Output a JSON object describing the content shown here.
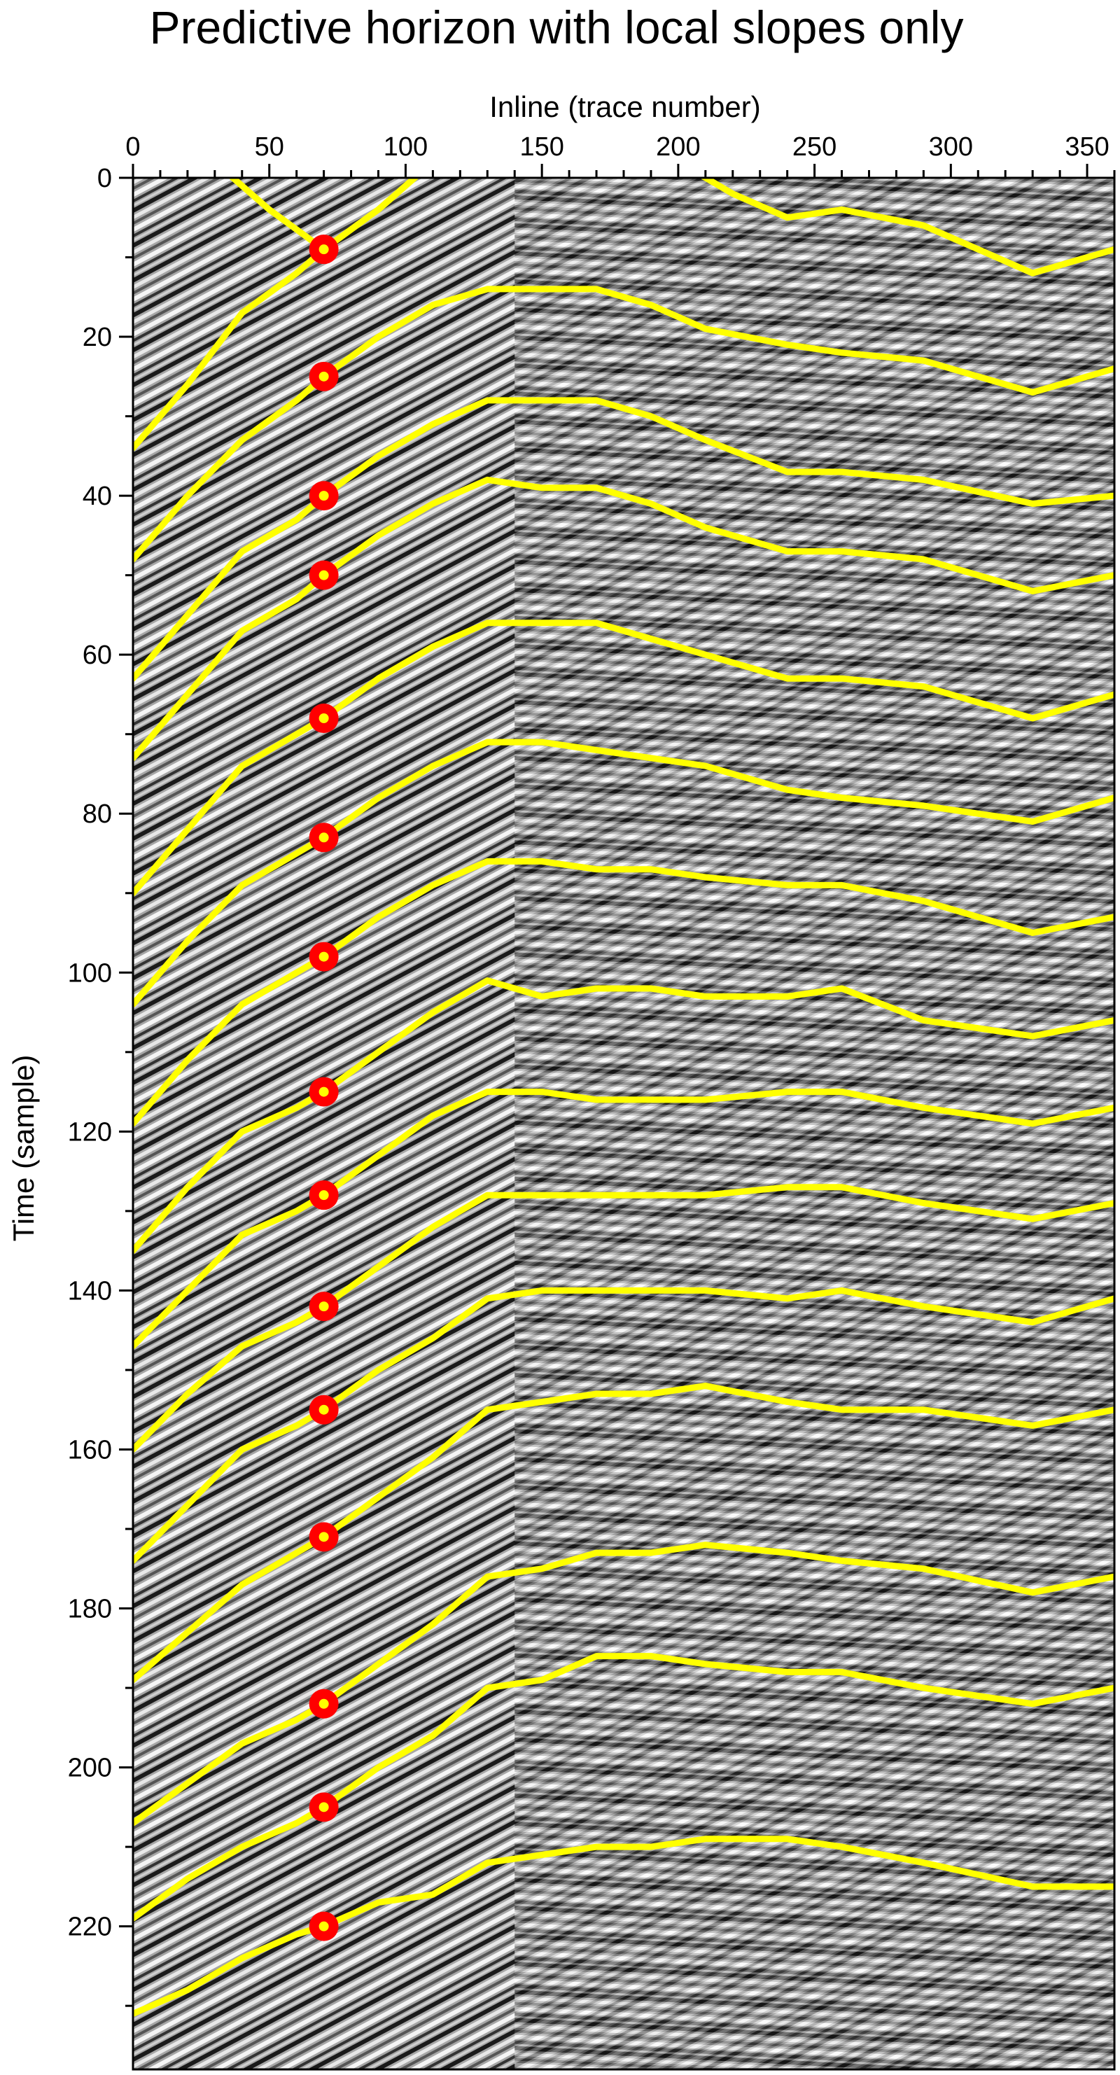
{
  "chart_data": {
    "type": "line",
    "title": "Predictive horizon with local slopes only",
    "xlabel": "Inline (trace number)",
    "ylabel": "Time (sample)",
    "xlim": [
      0,
      360
    ],
    "ylim": [
      0,
      238
    ],
    "y_inverted": true,
    "x_axis_position": "top",
    "x_ticks": [
      0,
      50,
      100,
      150,
      200,
      250,
      300,
      350
    ],
    "y_ticks": [
      0,
      20,
      40,
      60,
      80,
      100,
      120,
      140,
      160,
      180,
      200,
      220
    ],
    "grid": false,
    "legend": "none",
    "background": "grayscale seismic section",
    "colors": {
      "horizon": "#ffff00",
      "pick_marker": "#ff0000",
      "pick_center": "#ffff00"
    },
    "pick_trace": 70,
    "picks": [
      9,
      25,
      40,
      50,
      68,
      83,
      98,
      115,
      128,
      142,
      155,
      171,
      192,
      205,
      220
    ],
    "horizons": [
      {
        "x": [
          0,
          30,
          50,
          70,
          90,
          110,
          120,
          135,
          150
        ],
        "y": [
          -10,
          -2,
          4,
          9,
          4,
          -2,
          -5,
          -10,
          -14
        ]
      },
      {
        "x": [
          0,
          20,
          40,
          60,
          70,
          90,
          110,
          130,
          150,
          170,
          190,
          205,
          220,
          240,
          260,
          290,
          330,
          360
        ],
        "y": [
          34,
          26,
          17,
          12,
          9,
          4,
          -2,
          -8,
          -10,
          -8,
          -4,
          -1,
          2,
          5,
          4,
          6,
          12,
          9
        ]
      },
      {
        "x": [
          0,
          20,
          40,
          60,
          70,
          90,
          110,
          130,
          150,
          170,
          190,
          210,
          240,
          260,
          290,
          330,
          360
        ],
        "y": [
          48,
          40,
          33,
          28,
          25,
          20,
          16,
          14,
          14,
          14,
          16,
          19,
          21,
          22,
          23,
          27,
          24
        ]
      },
      {
        "x": [
          0,
          20,
          40,
          60,
          70,
          90,
          110,
          130,
          150,
          170,
          190,
          210,
          240,
          260,
          290,
          330,
          360
        ],
        "y": [
          63,
          55,
          47,
          43,
          40,
          35,
          31,
          28,
          28,
          28,
          30,
          33,
          37,
          37,
          38,
          41,
          40
        ]
      },
      {
        "x": [
          0,
          20,
          40,
          60,
          70,
          90,
          110,
          130,
          150,
          170,
          190,
          210,
          240,
          260,
          290,
          330,
          360
        ],
        "y": [
          73,
          65,
          57,
          53,
          50,
          45,
          41,
          38,
          39,
          39,
          41,
          44,
          47,
          47,
          48,
          52,
          50
        ]
      },
      {
        "x": [
          0,
          20,
          40,
          60,
          70,
          90,
          110,
          130,
          150,
          170,
          190,
          210,
          240,
          260,
          290,
          330,
          360
        ],
        "y": [
          90,
          82,
          74,
          70,
          68,
          63,
          59,
          56,
          56,
          56,
          58,
          60,
          63,
          63,
          64,
          68,
          65
        ]
      },
      {
        "x": [
          0,
          20,
          40,
          60,
          70,
          90,
          110,
          130,
          150,
          170,
          190,
          210,
          240,
          260,
          290,
          330,
          360
        ],
        "y": [
          104,
          96,
          89,
          85,
          83,
          78,
          74,
          71,
          71,
          72,
          73,
          74,
          77,
          78,
          79,
          81,
          78
        ]
      },
      {
        "x": [
          0,
          20,
          40,
          60,
          70,
          90,
          110,
          130,
          150,
          170,
          190,
          210,
          240,
          260,
          290,
          330,
          360
        ],
        "y": [
          119,
          111,
          104,
          100,
          98,
          93,
          89,
          86,
          86,
          87,
          87,
          88,
          89,
          89,
          91,
          95,
          93
        ]
      },
      {
        "x": [
          0,
          20,
          40,
          60,
          70,
          90,
          110,
          130,
          150,
          170,
          190,
          210,
          240,
          260,
          290,
          330,
          360
        ],
        "y": [
          135,
          127,
          120,
          117,
          115,
          110,
          105,
          101,
          103,
          102,
          102,
          103,
          103,
          102,
          106,
          108,
          106
        ]
      },
      {
        "x": [
          0,
          20,
          40,
          60,
          70,
          90,
          110,
          130,
          150,
          170,
          190,
          210,
          240,
          260,
          290,
          330,
          360
        ],
        "y": [
          147,
          140,
          133,
          130,
          128,
          123,
          118,
          115,
          115,
          116,
          116,
          116,
          115,
          115,
          117,
          119,
          117
        ]
      },
      {
        "x": [
          0,
          20,
          40,
          60,
          70,
          90,
          110,
          130,
          150,
          170,
          190,
          210,
          240,
          260,
          290,
          330,
          360
        ],
        "y": [
          160,
          153,
          147,
          144,
          142,
          137,
          132,
          128,
          128,
          128,
          128,
          128,
          127,
          127,
          129,
          131,
          129
        ]
      },
      {
        "x": [
          0,
          20,
          40,
          60,
          70,
          90,
          110,
          130,
          150,
          170,
          190,
          210,
          240,
          260,
          290,
          330,
          360
        ],
        "y": [
          174,
          167,
          160,
          157,
          155,
          150,
          146,
          141,
          140,
          140,
          140,
          140,
          141,
          140,
          142,
          144,
          141
        ]
      },
      {
        "x": [
          0,
          20,
          40,
          60,
          70,
          90,
          110,
          130,
          150,
          170,
          190,
          210,
          240,
          260,
          290,
          330,
          360
        ],
        "y": [
          189,
          183,
          177,
          173,
          171,
          166,
          161,
          155,
          154,
          153,
          153,
          152,
          154,
          155,
          155,
          157,
          155
        ]
      },
      {
        "x": [
          0,
          20,
          40,
          60,
          70,
          90,
          110,
          130,
          150,
          170,
          190,
          210,
          240,
          260,
          290,
          330,
          360
        ],
        "y": [
          207,
          202,
          197,
          194,
          192,
          187,
          182,
          176,
          175,
          173,
          173,
          172,
          173,
          174,
          175,
          178,
          176
        ]
      },
      {
        "x": [
          0,
          20,
          40,
          60,
          70,
          90,
          110,
          130,
          150,
          170,
          190,
          210,
          240,
          260,
          290,
          330,
          360
        ],
        "y": [
          219,
          214,
          210,
          207,
          205,
          200,
          196,
          190,
          189,
          186,
          186,
          187,
          188,
          188,
          190,
          192,
          190
        ]
      },
      {
        "x": [
          0,
          20,
          40,
          60,
          70,
          90,
          110,
          130,
          150,
          170,
          190,
          210,
          240,
          260,
          290,
          330,
          360
        ],
        "y": [
          231,
          228,
          224,
          221,
          220,
          217,
          216,
          212,
          211,
          210,
          210,
          209,
          209,
          210,
          212,
          215,
          215
        ]
      }
    ]
  }
}
